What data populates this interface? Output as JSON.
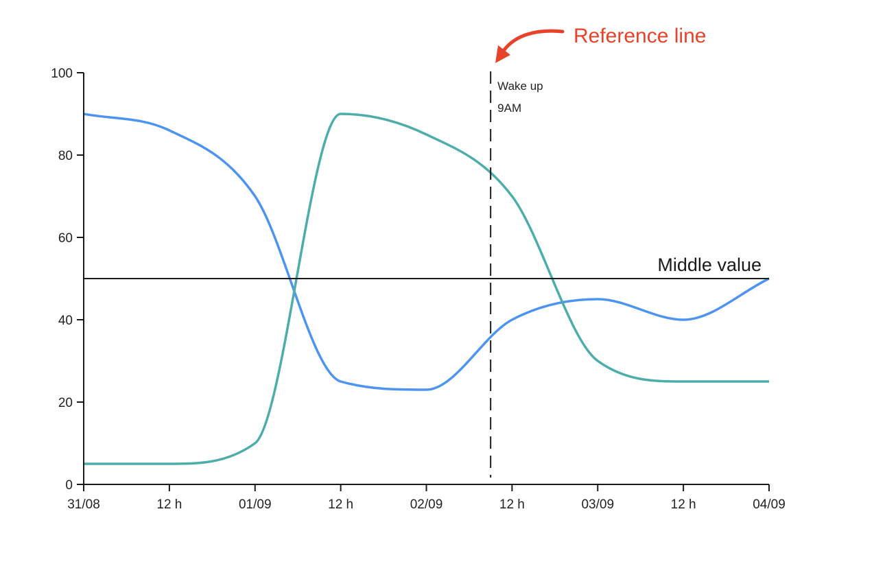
{
  "chart_data": {
    "type": "line",
    "title": "",
    "xlabel": "",
    "ylabel": "",
    "x": [
      "31/08 00:00",
      "31/08 12:00",
      "01/09 00:00",
      "01/09 12:00",
      "02/09 00:00",
      "02/09 12:00",
      "03/09 00:00",
      "03/09 12:00",
      "04/09 00:00"
    ],
    "x_tick_labels": [
      "31/08",
      "12 h",
      "01/09",
      "12 h",
      "02/09",
      "12 h",
      "03/09",
      "12 h",
      "04/09"
    ],
    "ylim": [
      0,
      100
    ],
    "y_ticks": [
      0,
      20,
      40,
      60,
      80,
      100
    ],
    "grid": false,
    "interpolation": "monotone",
    "series": [
      {
        "values": [
          90,
          86,
          70,
          25,
          23,
          40,
          45,
          40,
          50
        ],
        "color": "#4d94f0"
      },
      {
        "values": [
          5,
          5,
          10,
          90,
          85,
          70,
          30,
          25,
          25
        ],
        "color": "#4cadaa"
      }
    ],
    "horizontal_line": {
      "value": 50,
      "label": "Middle value",
      "color": "#1a1a1a"
    },
    "reference_line": {
      "x": "02/09 09:00",
      "label_lines": [
        "Wake up",
        "9AM"
      ],
      "style": "dashed"
    },
    "annotation": {
      "text": "Reference line",
      "color": "#e8432a"
    }
  }
}
